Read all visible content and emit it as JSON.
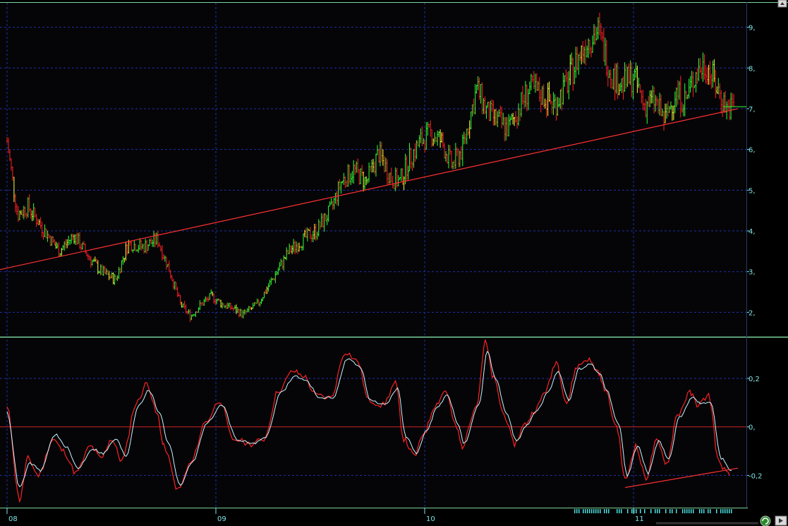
{
  "chart_data": [
    {
      "type": "candlestick",
      "panel": "price",
      "ylim": [
        1.4,
        9.6
      ],
      "y_ticks": [
        2,
        3,
        4,
        5,
        6,
        7,
        8,
        9
      ],
      "y_tick_labels": [
        "2,",
        "3,",
        "4,",
        "5,",
        "6,",
        "7,",
        "8,",
        "9,"
      ],
      "x_labels": [
        "08",
        "09",
        "10",
        "11"
      ],
      "x_label_positions": [
        0,
        1,
        2,
        3
      ],
      "x_range": [
        0,
        3.5
      ],
      "grid": true,
      "colors": {
        "up": "#33ff33",
        "down": "#ff2222",
        "neutral": "#ffff33",
        "trendline": "#ff3030",
        "grid": "#1f2fa0",
        "axis_text": "#7fe5e5"
      },
      "close_path": [
        [
          0.0,
          6.2
        ],
        [
          0.05,
          4.4
        ],
        [
          0.1,
          4.6
        ],
        [
          0.18,
          4.0
        ],
        [
          0.25,
          3.5
        ],
        [
          0.32,
          3.9
        ],
        [
          0.4,
          3.3
        ],
        [
          0.45,
          3.0
        ],
        [
          0.52,
          2.8
        ],
        [
          0.58,
          3.7
        ],
        [
          0.65,
          3.6
        ],
        [
          0.72,
          3.8
        ],
        [
          0.78,
          3.0
        ],
        [
          0.83,
          2.2
        ],
        [
          0.88,
          1.9
        ],
        [
          0.93,
          2.2
        ],
        [
          0.98,
          2.4
        ],
        [
          1.03,
          2.2
        ],
        [
          1.08,
          2.1
        ],
        [
          1.13,
          1.95
        ],
        [
          1.2,
          2.2
        ],
        [
          1.27,
          2.8
        ],
        [
          1.35,
          3.5
        ],
        [
          1.42,
          3.8
        ],
        [
          1.48,
          4.0
        ],
        [
          1.55,
          4.5
        ],
        [
          1.6,
          5.2
        ],
        [
          1.66,
          5.5
        ],
        [
          1.72,
          5.2
        ],
        [
          1.78,
          5.9
        ],
        [
          1.84,
          5.3
        ],
        [
          1.88,
          5.2
        ],
        [
          1.93,
          5.8
        ],
        [
          1.98,
          6.2
        ],
        [
          2.03,
          6.4
        ],
        [
          2.08,
          6.2
        ],
        [
          2.13,
          5.6
        ],
        [
          2.18,
          6.0
        ],
        [
          2.25,
          7.5
        ],
        [
          2.3,
          6.9
        ],
        [
          2.35,
          6.7
        ],
        [
          2.4,
          6.5
        ],
        [
          2.45,
          7.0
        ],
        [
          2.5,
          7.5
        ],
        [
          2.57,
          7.3
        ],
        [
          2.62,
          7.1
        ],
        [
          2.68,
          7.6
        ],
        [
          2.73,
          8.2
        ],
        [
          2.78,
          8.7
        ],
        [
          2.83,
          8.9
        ],
        [
          2.86,
          8.4
        ],
        [
          2.9,
          7.8
        ],
        [
          2.95,
          7.6
        ],
        [
          3.0,
          7.8
        ],
        [
          3.05,
          7.1
        ],
        [
          3.1,
          7.2
        ],
        [
          3.15,
          6.7
        ],
        [
          3.2,
          7.4
        ],
        [
          3.25,
          7.2
        ],
        [
          3.3,
          7.9
        ],
        [
          3.35,
          8.1
        ],
        [
          3.4,
          7.5
        ],
        [
          3.45,
          7.0
        ],
        [
          3.48,
          7.05
        ]
      ],
      "trendline": [
        [
          0.0,
          3.05
        ],
        [
          3.5,
          7.0
        ]
      ],
      "last_price_marker": 7.05
    },
    {
      "type": "line",
      "panel": "oscillator",
      "ylim": [
        -0.33,
        0.36
      ],
      "y_ticks": [
        -0.2,
        0,
        0.2
      ],
      "y_tick_labels": [
        "-0,2",
        "0,",
        "0,2"
      ],
      "zero_line": true,
      "series": [
        {
          "color": "#ff2222",
          "values": [
            [
              0.0,
              0.08
            ],
            [
              0.06,
              -0.3
            ],
            [
              0.1,
              -0.13
            ],
            [
              0.15,
              -0.2
            ],
            [
              0.22,
              -0.05
            ],
            [
              0.27,
              -0.1
            ],
            [
              0.33,
              -0.19
            ],
            [
              0.4,
              -0.08
            ],
            [
              0.45,
              -0.13
            ],
            [
              0.5,
              -0.05
            ],
            [
              0.55,
              -0.14
            ],
            [
              0.62,
              0.1
            ],
            [
              0.67,
              0.18
            ],
            [
              0.72,
              0.05
            ],
            [
              0.75,
              -0.08
            ],
            [
              0.82,
              -0.26
            ],
            [
              0.88,
              -0.15
            ],
            [
              0.95,
              0.02
            ],
            [
              1.02,
              0.11
            ],
            [
              1.08,
              -0.05
            ],
            [
              1.17,
              -0.07
            ],
            [
              1.23,
              -0.05
            ],
            [
              1.3,
              0.15
            ],
            [
              1.37,
              0.23
            ],
            [
              1.42,
              0.21
            ],
            [
              1.48,
              0.13
            ],
            [
              1.55,
              0.12
            ],
            [
              1.62,
              0.31
            ],
            [
              1.68,
              0.27
            ],
            [
              1.73,
              0.11
            ],
            [
              1.8,
              0.09
            ],
            [
              1.86,
              0.18
            ],
            [
              1.9,
              -0.05
            ],
            [
              1.95,
              -0.12
            ],
            [
              2.0,
              -0.02
            ],
            [
              2.05,
              0.09
            ],
            [
              2.1,
              0.15
            ],
            [
              2.15,
              0.0
            ],
            [
              2.18,
              -0.08
            ],
            [
              2.25,
              0.1
            ],
            [
              2.29,
              0.35
            ],
            [
              2.33,
              0.2
            ],
            [
              2.38,
              0.05
            ],
            [
              2.43,
              -0.07
            ],
            [
              2.48,
              0.01
            ],
            [
              2.53,
              0.07
            ],
            [
              2.58,
              0.15
            ],
            [
              2.63,
              0.27
            ],
            [
              2.68,
              0.1
            ],
            [
              2.73,
              0.25
            ],
            [
              2.78,
              0.28
            ],
            [
              2.83,
              0.23
            ],
            [
              2.86,
              0.16
            ],
            [
              2.92,
              0.0
            ],
            [
              2.96,
              -0.22
            ],
            [
              3.01,
              -0.08
            ],
            [
              3.06,
              -0.21
            ],
            [
              3.11,
              -0.06
            ],
            [
              3.16,
              -0.15
            ],
            [
              3.21,
              0.05
            ],
            [
              3.27,
              0.14
            ],
            [
              3.31,
              0.09
            ],
            [
              3.36,
              0.13
            ],
            [
              3.41,
              -0.15
            ],
            [
              3.46,
              -0.2
            ]
          ]
        },
        {
          "color": "#c8f5ff",
          "values": [
            [
              0.0,
              0.06
            ],
            [
              0.06,
              -0.25
            ],
            [
              0.11,
              -0.15
            ],
            [
              0.16,
              -0.18
            ],
            [
              0.23,
              -0.03
            ],
            [
              0.28,
              -0.08
            ],
            [
              0.34,
              -0.17
            ],
            [
              0.41,
              -0.09
            ],
            [
              0.46,
              -0.11
            ],
            [
              0.52,
              -0.05
            ],
            [
              0.57,
              -0.12
            ],
            [
              0.63,
              0.09
            ],
            [
              0.68,
              0.15
            ],
            [
              0.73,
              0.06
            ],
            [
              0.77,
              -0.06
            ],
            [
              0.83,
              -0.24
            ],
            [
              0.89,
              -0.14
            ],
            [
              0.96,
              0.02
            ],
            [
              1.03,
              0.09
            ],
            [
              1.1,
              -0.05
            ],
            [
              1.18,
              -0.07
            ],
            [
              1.24,
              -0.04
            ],
            [
              1.31,
              0.14
            ],
            [
              1.38,
              0.21
            ],
            [
              1.43,
              0.19
            ],
            [
              1.5,
              0.12
            ],
            [
              1.56,
              0.12
            ],
            [
              1.63,
              0.28
            ],
            [
              1.69,
              0.25
            ],
            [
              1.74,
              0.11
            ],
            [
              1.81,
              0.09
            ],
            [
              1.87,
              0.16
            ],
            [
              1.91,
              -0.04
            ],
            [
              1.96,
              -0.11
            ],
            [
              2.01,
              -0.01
            ],
            [
              2.06,
              0.08
            ],
            [
              2.11,
              0.13
            ],
            [
              2.16,
              0.01
            ],
            [
              2.19,
              -0.07
            ],
            [
              2.26,
              0.09
            ],
            [
              2.3,
              0.31
            ],
            [
              2.34,
              0.2
            ],
            [
              2.39,
              0.06
            ],
            [
              2.44,
              -0.06
            ],
            [
              2.49,
              0.01
            ],
            [
              2.54,
              0.07
            ],
            [
              2.59,
              0.14
            ],
            [
              2.64,
              0.23
            ],
            [
              2.69,
              0.11
            ],
            [
              2.74,
              0.24
            ],
            [
              2.79,
              0.26
            ],
            [
              2.84,
              0.22
            ],
            [
              2.87,
              0.15
            ],
            [
              2.93,
              0.01
            ],
            [
              2.97,
              -0.2
            ],
            [
              3.02,
              -0.08
            ],
            [
              3.07,
              -0.19
            ],
            [
              3.12,
              -0.06
            ],
            [
              3.17,
              -0.13
            ],
            [
              3.22,
              0.04
            ],
            [
              3.28,
              0.12
            ],
            [
              3.32,
              0.1
            ],
            [
              3.37,
              0.1
            ],
            [
              3.42,
              -0.13
            ],
            [
              3.47,
              -0.18
            ]
          ]
        }
      ],
      "trendline": [
        [
          2.96,
          -0.25
        ],
        [
          3.5,
          -0.17
        ]
      ],
      "x_labels": [
        "08",
        "09",
        "10",
        "11"
      ]
    }
  ]
}
